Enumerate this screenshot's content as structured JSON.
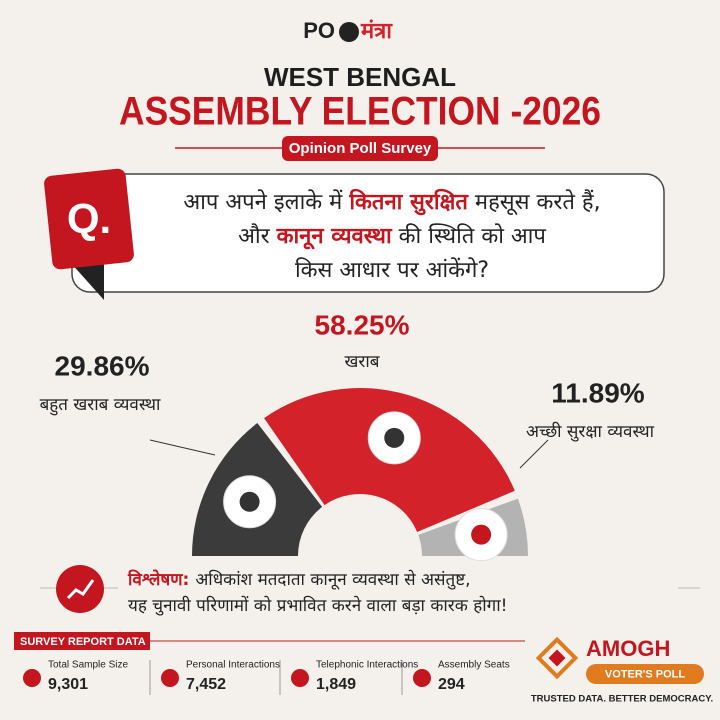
{
  "logo": {
    "latin": "PO",
    "hindi": "मंत्रा"
  },
  "header": {
    "title_line1": "WEST BENGAL",
    "title_line2": "ASSEMBLY ELECTION -2026",
    "badge": "Opinion Poll Survey"
  },
  "question": {
    "badge": "Q.",
    "lines": [
      [
        "आप अपने इलाके में ",
        "कितना सुरक्षित",
        " महसूस करते हैं,"
      ],
      [
        "और ",
        "कानून व्यवस्था",
        " की स्थिति को आप"
      ],
      [
        "किस आधार पर आंकेंगे?"
      ]
    ]
  },
  "chart_data": {
    "type": "half-donut",
    "categories": [
      "बहुत खराब व्यवस्था",
      "खराब",
      "अच्छी सुरक्षा व्यवस्था"
    ],
    "values": [
      29.86,
      58.25,
      11.89
    ],
    "value_labels": [
      "29.86%",
      "58.25%",
      "11.89%"
    ],
    "colors": [
      "#3b3b3b",
      "#d3222a",
      "#b3b3b3"
    ]
  },
  "analysis": {
    "label": "विश्लेषण:",
    "lines": [
      "अधिकांश मतदाता कानून व्यवस्था से असंतुष्ट,",
      "यह चुनावी परिणामों को प्रभावित करने वाला बड़ा कारक होगा!"
    ]
  },
  "survey": {
    "title": "SURVEY REPORT DATA",
    "stats": [
      {
        "label": "Total Sample Size",
        "value": "9,301"
      },
      {
        "label": "Personal Interactions",
        "value": "7,452"
      },
      {
        "label": "Telephonic Interactions",
        "value": "1,849"
      },
      {
        "label": "Assembly Seats",
        "value": 294
      }
    ]
  },
  "brand": {
    "name": "AMOGH",
    "sub": "VOTER'S POLL",
    "tagline": "TRUSTED DATA. BETTER DEMOCRACY."
  }
}
